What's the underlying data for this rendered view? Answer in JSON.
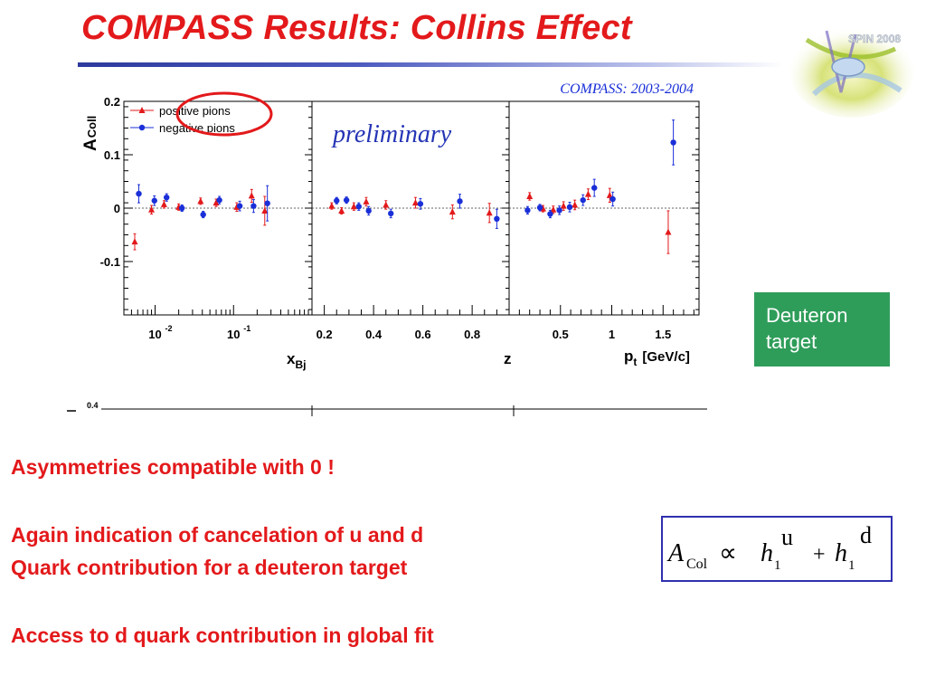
{
  "slide": {
    "title": "COMPASS Results: Collins Effect",
    "logo_text": "SPIN 2008"
  },
  "plot": {
    "header": "COMPASS: 2003-2004",
    "watermark": "preliminary",
    "ylabel_main": "A",
    "ylabel_sub": "Coll",
    "yticks": [
      "0.2",
      "0.1",
      "0",
      "-0.1"
    ],
    "legend": {
      "positive": "positive pions",
      "negative": "negative pions"
    },
    "panels": [
      {
        "xlabel_main": "x",
        "xlabel_sub": "Bj",
        "ticks": [
          "10",
          "10"
        ],
        "tick_exponents": [
          "-2",
          "-1"
        ]
      },
      {
        "xlabel_main": "z",
        "xlabel_sub": "",
        "ticks": [
          "0.2",
          "0.4",
          "0.6",
          "0.8"
        ]
      },
      {
        "xlabel_main": "p",
        "xlabel_sub": "t",
        "xlabel_unit": "[GeV/c]",
        "ticks": [
          "0.5",
          "1",
          "1.5"
        ]
      }
    ],
    "bottom_fragment_tick": "0.4",
    "colors": {
      "positive": "#e3191b",
      "negative": "#1a2fd8",
      "accent": "#e3191b"
    }
  },
  "chart_data": {
    "type": "scatter",
    "title": "COMPASS: 2003-2004",
    "ylabel": "A_Coll",
    "ylim": [
      -0.2,
      0.2
    ],
    "panels": [
      {
        "xlabel": "x_Bj",
        "xscale": "log",
        "xlim": [
          0.004,
          1.0
        ],
        "series": [
          {
            "name": "positive pions",
            "marker": "triangle",
            "x": [
              0.0055,
              0.009,
              0.013,
              0.02,
              0.038,
              0.06,
              0.11,
              0.17,
              0.25
            ],
            "y": [
              -0.063,
              -0.003,
              0.007,
              0.002,
              0.013,
              0.01,
              0.002,
              0.023,
              -0.005
            ],
            "err": [
              0.015,
              0.008,
              0.007,
              0.006,
              0.006,
              0.007,
              0.008,
              0.012,
              0.027
            ]
          },
          {
            "name": "negative pions",
            "marker": "circle",
            "x": [
              0.0062,
              0.0098,
              0.014,
              0.022,
              0.041,
              0.066,
              0.12,
              0.18,
              0.27
            ],
            "y": [
              0.027,
              0.014,
              0.02,
              0.0,
              -0.012,
              0.015,
              0.004,
              0.004,
              0.009
            ],
            "err": [
              0.017,
              0.009,
              0.007,
              0.006,
              0.006,
              0.007,
              0.009,
              0.012,
              0.033
            ]
          }
        ]
      },
      {
        "xlabel": "z",
        "xlim": [
          0.15,
          0.95
        ],
        "series": [
          {
            "name": "positive pions",
            "marker": "triangle",
            "x": [
              0.23,
              0.27,
              0.32,
              0.37,
              0.45,
              0.57,
              0.72,
              0.87
            ],
            "y": [
              0.004,
              -0.005,
              0.003,
              0.012,
              0.006,
              0.01,
              -0.007,
              -0.009
            ],
            "err": [
              0.006,
              0.006,
              0.007,
              0.008,
              0.008,
              0.01,
              0.013,
              0.018
            ]
          },
          {
            "name": "negative pions",
            "marker": "circle",
            "x": [
              0.25,
              0.29,
              0.34,
              0.38,
              0.47,
              0.59,
              0.75,
              0.9
            ],
            "y": [
              0.014,
              0.015,
              0.003,
              -0.005,
              -0.01,
              0.008,
              0.013,
              -0.02
            ],
            "err": [
              0.006,
              0.006,
              0.007,
              0.008,
              0.008,
              0.01,
              0.013,
              0.018
            ]
          }
        ]
      },
      {
        "xlabel": "p_t [GeV/c]",
        "xlim": [
          0.0,
          1.85
        ],
        "series": [
          {
            "name": "positive pions",
            "marker": "triangle",
            "x": [
              0.2,
              0.33,
              0.43,
              0.53,
              0.64,
              0.77,
              0.98,
              1.55
            ],
            "y": [
              0.022,
              -0.001,
              -0.003,
              0.004,
              0.006,
              0.026,
              0.024,
              -0.045
            ],
            "err": [
              0.007,
              0.006,
              0.007,
              0.008,
              0.009,
              0.01,
              0.013,
              0.04
            ]
          },
          {
            "name": "negative pions",
            "marker": "circle",
            "x": [
              0.18,
              0.3,
              0.4,
              0.49,
              0.59,
              0.72,
              0.83,
              1.01,
              1.6
            ],
            "y": [
              -0.004,
              0.001,
              -0.011,
              -0.004,
              0.002,
              0.015,
              0.038,
              0.017,
              0.123
            ],
            "err": [
              0.007,
              0.006,
              0.007,
              0.008,
              0.009,
              0.01,
              0.016,
              0.013,
              0.042
            ]
          }
        ]
      }
    ],
    "legend_position": "top-left",
    "reference_line_y": 0
  },
  "side_box": {
    "line1": "Deuteron",
    "line2": "target"
  },
  "bullets": [
    "Asymmetries compatible with 0 !",
    "Again indication of cancelation of  u and d",
    "Quark contribution  for a deuteron target",
    "Access to  d quark contribution in global fit"
  ],
  "formula": {
    "A": "A",
    "col": "Col",
    "propto": "∝",
    "h1": "h",
    "sub1": "1",
    "sup_u": "u",
    "plus": "+",
    "h2": "h",
    "sub2": "1",
    "sup_d": "d"
  }
}
